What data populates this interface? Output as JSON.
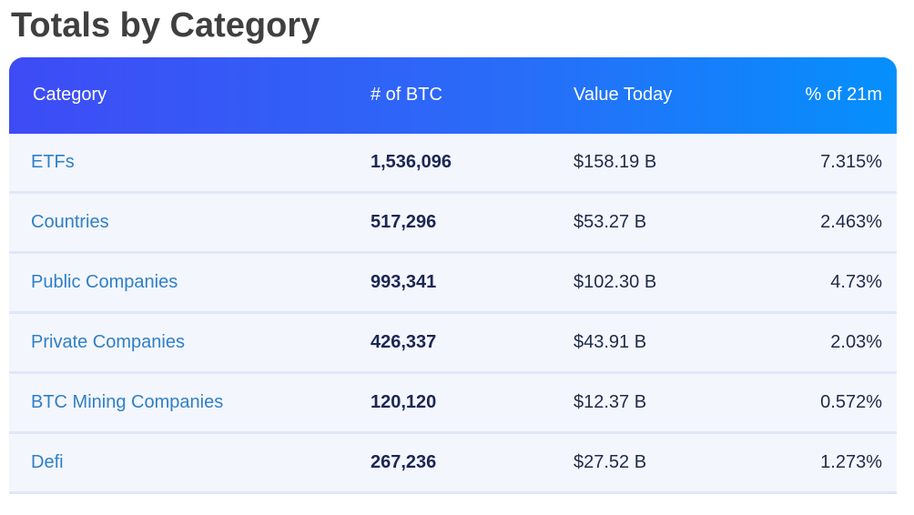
{
  "page": {
    "title": "Totals by Category"
  },
  "table": {
    "columns": [
      {
        "label": "Category",
        "align": "left"
      },
      {
        "label": "# of BTC",
        "align": "left"
      },
      {
        "label": "Value Today",
        "align": "left"
      },
      {
        "label": "% of 21m",
        "align": "right"
      }
    ],
    "rows": [
      {
        "category": "ETFs",
        "btc": "1,536,096",
        "value": "$158.19 B",
        "pct": "7.315%"
      },
      {
        "category": "Countries",
        "btc": "517,296",
        "value": "$53.27 B",
        "pct": "2.463%"
      },
      {
        "category": "Public Companies",
        "btc": "993,341",
        "value": "$102.30 B",
        "pct": "4.73%"
      },
      {
        "category": "Private Companies",
        "btc": "426,337",
        "value": "$43.91 B",
        "pct": "2.03%"
      },
      {
        "category": "BTC Mining Companies",
        "btc": "120,120",
        "value": "$12.37 B",
        "pct": "0.572%"
      },
      {
        "category": "Defi",
        "btc": "267,236",
        "value": "$27.52 B",
        "pct": "1.273%"
      }
    ]
  },
  "colors": {
    "header_gradient_start": "#3e4bf5",
    "header_gradient_end": "#0590fc",
    "header_text": "#ffffff",
    "row_background": "#f4f6fe",
    "row_divider": "#e1e7f9",
    "category_link": "#2e80c6",
    "btc_number_text": "#1b2653",
    "body_text": "#1f2b47",
    "heading_text": "#3f3f3f"
  }
}
